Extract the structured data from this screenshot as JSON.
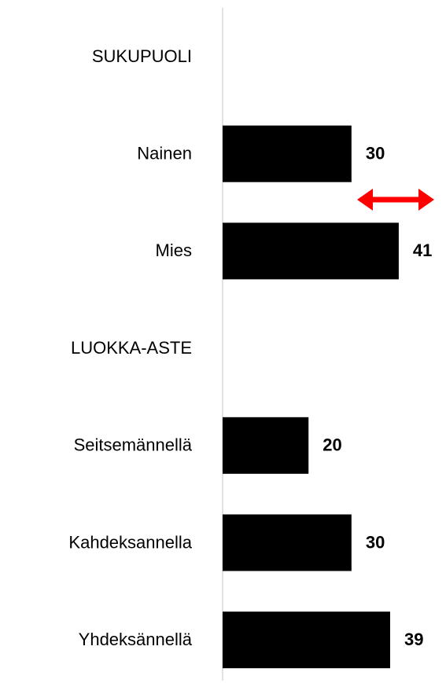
{
  "chart_data": {
    "type": "bar",
    "orientation": "horizontal",
    "categories": [
      "SUKUPUOLI",
      "Nainen",
      "Mies",
      "LUOKKA-ASTE",
      "Seitsemännellä",
      "Kahdeksannella",
      "Yhdeksännellä"
    ],
    "values": [
      null,
      30,
      41,
      null,
      20,
      30,
      39
    ],
    "color": "#000000",
    "xlim": [
      0,
      52
    ]
  }
}
